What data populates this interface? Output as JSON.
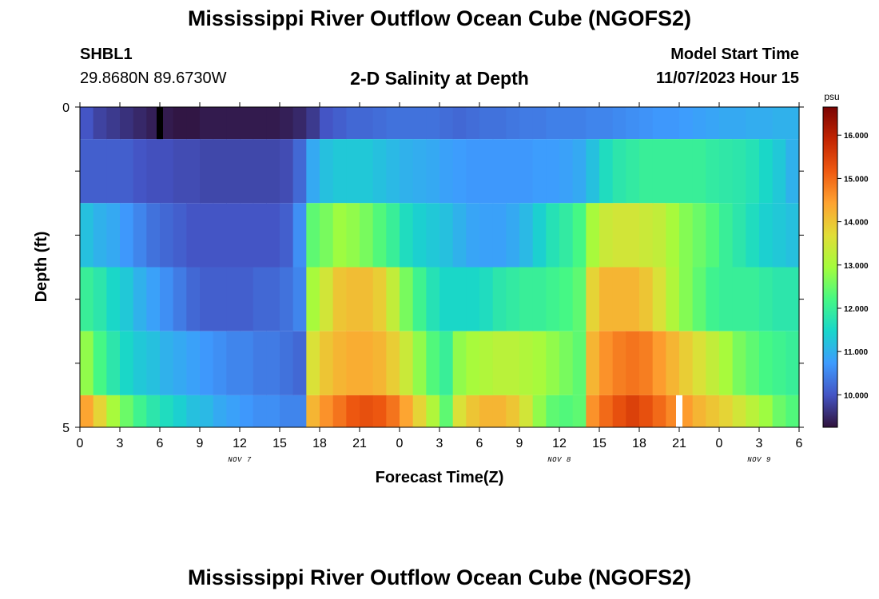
{
  "header": {
    "title": "Mississippi River Outflow Ocean Cube (NGOFS2)",
    "station": "SHBL1",
    "coords": "29.8680N  89.6730W",
    "plot_title": "2-D Salinity at Depth",
    "model_start_label": "Model Start Time",
    "model_start_value": "11/07/2023 Hour 15"
  },
  "footer": {
    "title": "Mississippi River Outflow Ocean Cube (NGOFS2)"
  },
  "chart_data": {
    "type": "heatmap",
    "title": "2-D Salinity at Depth",
    "xlabel": "Forecast Time(Z)",
    "ylabel": "Depth (ft)",
    "x_start": "11/07/2023 Hour 0",
    "x_step_hours": 1,
    "xlim_hours": [
      0,
      54
    ],
    "ylim": [
      0,
      5
    ],
    "x_ticks": [
      "0",
      "3",
      "6",
      "9",
      "12",
      "15",
      "18",
      "21",
      "0",
      "3",
      "6",
      "9",
      "12",
      "15",
      "18",
      "21",
      "0",
      "3",
      "6"
    ],
    "date_labels": [
      {
        "label": "NOV 7",
        "hour": 12
      },
      {
        "label": "NOV 8",
        "hour": 36
      },
      {
        "label": "NOV 9",
        "hour": 51
      }
    ],
    "y_ticks": [
      "0",
      "5"
    ],
    "colorbar": {
      "unit": "psu",
      "min": 9.25,
      "max": 16.65,
      "ticks": [
        "10.000",
        "11.000",
        "12.000",
        "13.000",
        "14.000",
        "15.000",
        "16.000"
      ],
      "tick_values": [
        10,
        11,
        12,
        13,
        14,
        15,
        16
      ]
    },
    "markers": [
      {
        "hour": 6,
        "layer": 0,
        "color": "#000000"
      },
      {
        "hour": 45,
        "layer": 5,
        "color": "#ffffff"
      }
    ],
    "layers": [
      {
        "depth_range": [
          0,
          0.5
        ],
        "values": [
          10.0,
          9.8,
          9.7,
          9.6,
          9.5,
          9.4,
          9.35,
          9.3,
          9.3,
          9.35,
          9.35,
          9.35,
          9.35,
          9.35,
          9.35,
          9.4,
          9.5,
          9.7,
          10.0,
          10.1,
          10.2,
          10.2,
          10.25,
          10.3,
          10.3,
          10.3,
          10.3,
          10.25,
          10.2,
          10.25,
          10.3,
          10.3,
          10.35,
          10.4,
          10.4,
          10.45,
          10.45,
          10.45,
          10.5,
          10.5,
          10.55,
          10.6,
          10.65,
          10.7,
          10.7,
          10.75,
          10.8,
          10.85,
          10.9,
          10.9,
          10.95,
          10.95,
          11.0,
          11.0
        ]
      },
      {
        "depth_range": [
          0.5,
          1.5
        ],
        "values": [
          10.1,
          10.1,
          10.1,
          10.1,
          10.0,
          9.95,
          9.95,
          9.9,
          9.9,
          9.85,
          9.85,
          9.85,
          9.85,
          9.85,
          9.85,
          9.9,
          10.2,
          10.9,
          11.2,
          11.3,
          11.3,
          11.3,
          11.2,
          11.1,
          11.0,
          10.95,
          10.9,
          10.8,
          10.75,
          10.7,
          10.7,
          10.7,
          10.7,
          10.7,
          10.75,
          10.75,
          10.8,
          10.9,
          11.2,
          11.6,
          11.8,
          11.9,
          12.0,
          12.0,
          12.0,
          12.0,
          12.0,
          11.9,
          11.85,
          11.8,
          11.7,
          11.5,
          11.3,
          11.0
        ]
      },
      {
        "depth_range": [
          1.5,
          2.5
        ],
        "values": [
          11.2,
          11.0,
          10.9,
          10.7,
          10.5,
          10.3,
          10.2,
          10.1,
          10.0,
          10.0,
          10.0,
          10.0,
          10.0,
          10.0,
          10.0,
          10.1,
          10.6,
          12.4,
          12.6,
          12.9,
          12.8,
          12.6,
          12.3,
          12.0,
          11.6,
          11.4,
          11.3,
          11.2,
          11.0,
          10.85,
          10.8,
          10.8,
          10.9,
          11.1,
          11.4,
          11.7,
          11.9,
          12.2,
          13.0,
          13.4,
          13.5,
          13.5,
          13.4,
          13.3,
          13.0,
          12.7,
          12.5,
          12.3,
          12.0,
          11.8,
          11.6,
          11.4,
          11.3,
          11.2
        ]
      },
      {
        "depth_range": [
          2.5,
          3.5
        ],
        "values": [
          12.0,
          11.8,
          11.5,
          11.3,
          11.0,
          10.8,
          10.6,
          10.4,
          10.2,
          10.1,
          10.1,
          10.1,
          10.1,
          10.2,
          10.2,
          10.3,
          10.5,
          13.0,
          13.5,
          14.0,
          14.1,
          14.1,
          13.9,
          13.3,
          12.6,
          12.1,
          11.7,
          11.5,
          11.5,
          11.5,
          11.6,
          11.8,
          11.9,
          12.0,
          12.0,
          12.1,
          12.2,
          12.4,
          13.8,
          14.2,
          14.2,
          14.2,
          14.0,
          13.6,
          13.1,
          12.7,
          12.4,
          12.1,
          12.0,
          12.0,
          12.0,
          11.9,
          11.8,
          11.8
        ]
      },
      {
        "depth_range": [
          3.5,
          4.5
        ],
        "values": [
          12.8,
          12.2,
          11.8,
          11.5,
          11.3,
          11.2,
          11.0,
          10.9,
          10.8,
          10.7,
          10.6,
          10.5,
          10.5,
          10.4,
          10.4,
          10.3,
          10.2,
          13.6,
          14.0,
          14.2,
          14.3,
          14.3,
          14.2,
          13.9,
          13.4,
          12.8,
          12.3,
          12.0,
          12.8,
          13.0,
          13.1,
          13.2,
          13.2,
          13.1,
          13.0,
          12.8,
          12.6,
          12.4,
          14.2,
          14.6,
          14.8,
          14.9,
          14.8,
          14.5,
          14.2,
          13.9,
          13.6,
          13.3,
          13.0,
          12.6,
          12.4,
          12.2,
          12.1,
          12.0
        ]
      },
      {
        "depth_range": [
          4.5,
          5.0
        ],
        "values": [
          14.4,
          13.8,
          13.0,
          12.5,
          12.1,
          11.8,
          11.6,
          11.4,
          11.2,
          11.1,
          10.9,
          10.8,
          10.7,
          10.6,
          10.6,
          10.5,
          10.5,
          14.2,
          14.6,
          14.9,
          15.2,
          15.3,
          15.2,
          14.9,
          14.4,
          13.8,
          13.1,
          12.4,
          13.6,
          14.0,
          14.2,
          14.2,
          14.0,
          13.5,
          12.8,
          12.4,
          12.3,
          12.4,
          14.6,
          15.0,
          15.3,
          15.5,
          15.3,
          15.0,
          14.7,
          14.5,
          14.2,
          14.0,
          13.8,
          13.5,
          13.2,
          12.9,
          12.5,
          12.3
        ]
      }
    ]
  }
}
